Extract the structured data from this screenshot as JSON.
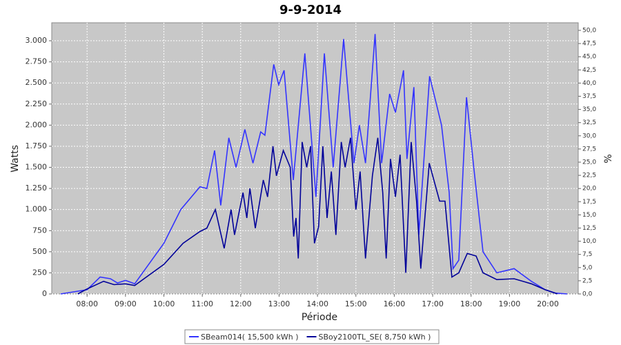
{
  "chart_data": {
    "type": "line",
    "title": "9-9-2014",
    "x_label": "Période",
    "y_label": "Watts",
    "y2_label": "%",
    "xlim": [
      7.08,
      20.79
    ],
    "ylim": [
      0,
      3213
    ],
    "y2lim": [
      0,
      51.44
    ],
    "grid": true,
    "legend": "bottom",
    "xticks": [
      {
        "value": 8,
        "label": "08:00"
      },
      {
        "value": 9,
        "label": "09:00"
      },
      {
        "value": 10,
        "label": "10:00"
      },
      {
        "value": 11,
        "label": "11:00"
      },
      {
        "value": 12,
        "label": "12:00"
      },
      {
        "value": 13,
        "label": "13:00"
      },
      {
        "value": 14,
        "label": "14:00"
      },
      {
        "value": 15,
        "label": "15:00"
      },
      {
        "value": 16,
        "label": "16:00"
      },
      {
        "value": 17,
        "label": "17:00"
      },
      {
        "value": 18,
        "label": "18:00"
      },
      {
        "value": 19,
        "label": "19:00"
      },
      {
        "value": 20,
        "label": "20:00"
      }
    ],
    "yticks": [
      0,
      250,
      500,
      750,
      {
        "value": 1000,
        "label": "1.000"
      },
      {
        "value": 1250,
        "label": "1.250"
      },
      {
        "value": 1500,
        "label": "1.500"
      },
      {
        "value": 1750,
        "label": "1.750"
      },
      {
        "value": 2000,
        "label": "2.000"
      },
      {
        "value": 2250,
        "label": "2.250"
      },
      {
        "value": 2500,
        "label": "2.500"
      },
      {
        "value": 2750,
        "label": "2.750"
      },
      {
        "value": 3000,
        "label": "3.000"
      }
    ],
    "y2ticks": [
      {
        "value": 0,
        "label": "0,0"
      },
      {
        "value": 2.5,
        "label": "2,5"
      },
      {
        "value": 5,
        "label": "5,0"
      },
      {
        "value": 7.5,
        "label": "7,5"
      },
      {
        "value": 10,
        "label": "10,0"
      },
      {
        "value": 12.5,
        "label": "12,5"
      },
      {
        "value": 15,
        "label": "15,0"
      },
      {
        "value": 17.5,
        "label": "17,5"
      },
      {
        "value": 20,
        "label": "20,0"
      },
      {
        "value": 22.5,
        "label": "22,5"
      },
      {
        "value": 25,
        "label": "25,0"
      },
      {
        "value": 27.5,
        "label": "27,5"
      },
      {
        "value": 30,
        "label": "30,0"
      },
      {
        "value": 32.5,
        "label": "32,5"
      },
      {
        "value": 35,
        "label": "35,0"
      },
      {
        "value": 37.5,
        "label": "37,5"
      },
      {
        "value": 40,
        "label": "40,0"
      },
      {
        "value": 42.5,
        "label": "42,5"
      },
      {
        "value": 45,
        "label": "45,0"
      },
      {
        "value": 47.5,
        "label": "47,5"
      },
      {
        "value": 50,
        "label": "50,0"
      }
    ],
    "series": [
      {
        "name": "SBeam014( 15,500 kWh )",
        "color": "#3333ff",
        "x": [
          7.31,
          8.0,
          8.34,
          8.61,
          8.79,
          9.0,
          9.24,
          10.0,
          10.44,
          10.94,
          11.12,
          11.32,
          11.48,
          11.69,
          11.88,
          12.11,
          12.32,
          12.52,
          12.63,
          12.86,
          12.99,
          13.13,
          13.37,
          13.67,
          13.96,
          14.18,
          14.41,
          14.68,
          14.95,
          15.09,
          15.25,
          15.5,
          15.67,
          15.88,
          16.03,
          16.24,
          16.33,
          16.51,
          16.64,
          16.92,
          17.23,
          17.43,
          17.53,
          17.68,
          17.88,
          18.07,
          18.31,
          18.67,
          19.12,
          19.57,
          19.93,
          20.2,
          20.5
        ],
        "values": [
          0,
          50,
          200,
          180,
          130,
          160,
          120,
          600,
          1000,
          1270,
          1250,
          1700,
          1050,
          1850,
          1500,
          1950,
          1550,
          1920,
          1880,
          2720,
          2480,
          2650,
          1350,
          2850,
          1150,
          2850,
          1500,
          3020,
          1550,
          2000,
          1550,
          3080,
          1550,
          2370,
          2150,
          2650,
          1600,
          2450,
          700,
          2580,
          2000,
          1200,
          300,
          400,
          2330,
          1500,
          500,
          250,
          300,
          150,
          50,
          10,
          0
        ]
      },
      {
        "name": "SBoy2100TL_SE( 8,750 kWh )",
        "color": "#000099",
        "x": [
          7.76,
          8.0,
          8.43,
          8.7,
          9.0,
          9.24,
          10.0,
          10.5,
          10.94,
          11.12,
          11.34,
          11.57,
          11.75,
          11.84,
          12.06,
          12.16,
          12.24,
          12.38,
          12.59,
          12.7,
          12.84,
          12.93,
          13.11,
          13.29,
          13.38,
          13.44,
          13.5,
          13.6,
          13.72,
          13.82,
          13.92,
          14.03,
          14.14,
          14.25,
          14.36,
          14.48,
          14.62,
          14.72,
          14.86,
          15.0,
          15.11,
          15.25,
          15.43,
          15.57,
          15.7,
          15.79,
          15.9,
          16.03,
          16.15,
          16.3,
          16.44,
          16.58,
          16.69,
          16.91,
          17.18,
          17.32,
          17.5,
          17.68,
          17.9,
          18.13,
          18.31,
          18.67,
          19.12,
          19.57,
          19.93,
          20.25
        ],
        "values": [
          0,
          60,
          150,
          110,
          120,
          100,
          350,
          600,
          740,
          780,
          1000,
          540,
          1000,
          700,
          1200,
          900,
          1250,
          780,
          1350,
          1150,
          1750,
          1400,
          1700,
          1500,
          680,
          900,
          420,
          1800,
          1500,
          1750,
          600,
          800,
          1750,
          900,
          1450,
          700,
          1800,
          1500,
          1850,
          1000,
          1450,
          420,
          1400,
          1850,
          1200,
          420,
          1600,
          1150,
          1650,
          250,
          1800,
          1100,
          300,
          1550,
          1100,
          1100,
          200,
          250,
          480,
          450,
          250,
          170,
          180,
          120,
          50,
          0
        ]
      }
    ]
  }
}
